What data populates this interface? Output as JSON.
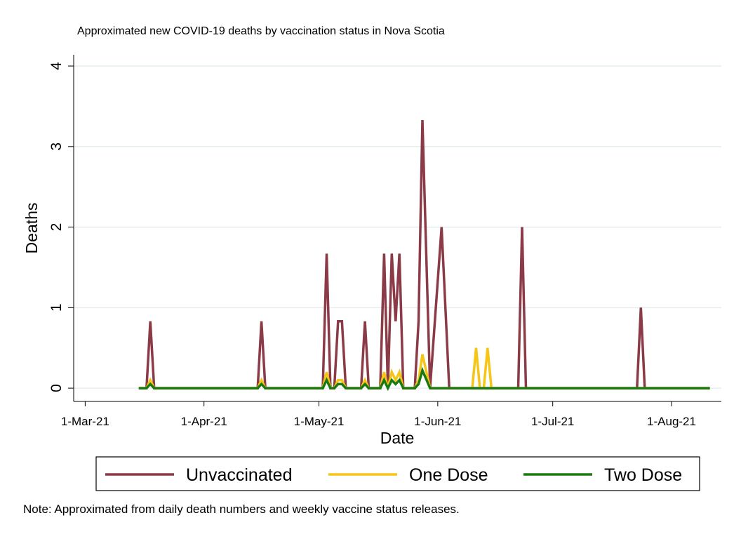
{
  "chart_data": {
    "type": "line",
    "title": "Approximated new COVID-19 deaths by vaccination status in Nova Scotia",
    "x_label": "Date",
    "y_label": "Deaths",
    "note": "Note: Approximated from daily death numbers and weekly vaccine status releases.",
    "x": [
      "2021-03-15",
      "2021-03-17",
      "2021-03-18",
      "2021-03-19",
      "2021-04-15",
      "2021-04-16",
      "2021-04-17",
      "2021-05-02",
      "2021-05-03",
      "2021-05-04",
      "2021-05-05",
      "2021-05-06",
      "2021-05-07",
      "2021-05-08",
      "2021-05-12",
      "2021-05-13",
      "2021-05-14",
      "2021-05-17",
      "2021-05-18",
      "2021-05-19",
      "2021-05-20",
      "2021-05-21",
      "2021-05-22",
      "2021-05-23",
      "2021-05-26",
      "2021-05-27",
      "2021-05-28",
      "2021-05-30",
      "2021-06-02",
      "2021-06-04",
      "2021-06-10",
      "2021-06-11",
      "2021-06-12",
      "2021-06-13",
      "2021-06-14",
      "2021-06-15",
      "2021-06-22",
      "2021-06-23",
      "2021-06-24",
      "2021-07-23",
      "2021-07-24",
      "2021-07-25",
      "2021-08-11"
    ],
    "series": [
      {
        "name": "Unvaccinated",
        "color": "#8b3a47",
        "values": [
          0,
          0,
          0.83,
          0,
          0,
          0.83,
          0,
          0,
          1.67,
          0,
          0,
          0.83,
          0.83,
          0,
          0,
          0.83,
          0,
          0,
          1.67,
          0,
          1.67,
          0.83,
          1.67,
          0,
          0,
          0.83,
          3.33,
          0,
          2,
          0,
          0,
          0,
          0,
          0,
          0,
          0,
          0,
          2,
          0,
          0,
          1,
          0,
          0
        ]
      },
      {
        "name": "One Dose",
        "color": "#f5c518",
        "values": [
          0,
          0,
          0.1,
          0,
          0,
          0.1,
          0,
          0,
          0.2,
          0,
          0,
          0.1,
          0.1,
          0,
          0,
          0.1,
          0,
          0,
          0.2,
          0,
          0.2,
          0.1,
          0.2,
          0,
          0,
          0.1,
          0.42,
          0,
          0,
          0,
          0,
          0.5,
          0,
          0,
          0.5,
          0,
          0,
          0,
          0,
          0,
          0,
          0,
          0
        ]
      },
      {
        "name": "Two Dose",
        "color": "#1a7a10",
        "values": [
          0,
          0,
          0.05,
          0,
          0,
          0.05,
          0,
          0,
          0.1,
          0,
          0,
          0.05,
          0.05,
          0,
          0,
          0.05,
          0,
          0,
          0.1,
          0,
          0.1,
          0.05,
          0.1,
          0,
          0,
          0.05,
          0.22,
          0,
          0,
          0,
          0,
          0,
          0,
          0,
          0,
          0,
          0,
          0,
          0,
          0,
          0,
          0,
          0
        ]
      }
    ],
    "xlim": [
      "2021-02-26",
      "2021-08-14"
    ],
    "xticks": [
      {
        "value": "2021-03-01",
        "label": "1-Mar-21"
      },
      {
        "value": "2021-04-01",
        "label": "1-Apr-21"
      },
      {
        "value": "2021-05-01",
        "label": "1-May-21"
      },
      {
        "value": "2021-06-01",
        "label": "1-Jun-21"
      },
      {
        "value": "2021-07-01",
        "label": "1-Jul-21"
      },
      {
        "value": "2021-08-01",
        "label": "1-Aug-21"
      }
    ],
    "ylim": [
      -0.13,
      4.14
    ],
    "yticks": [
      0,
      1,
      2,
      3,
      4
    ],
    "grid": true,
    "legend": "bottom"
  }
}
